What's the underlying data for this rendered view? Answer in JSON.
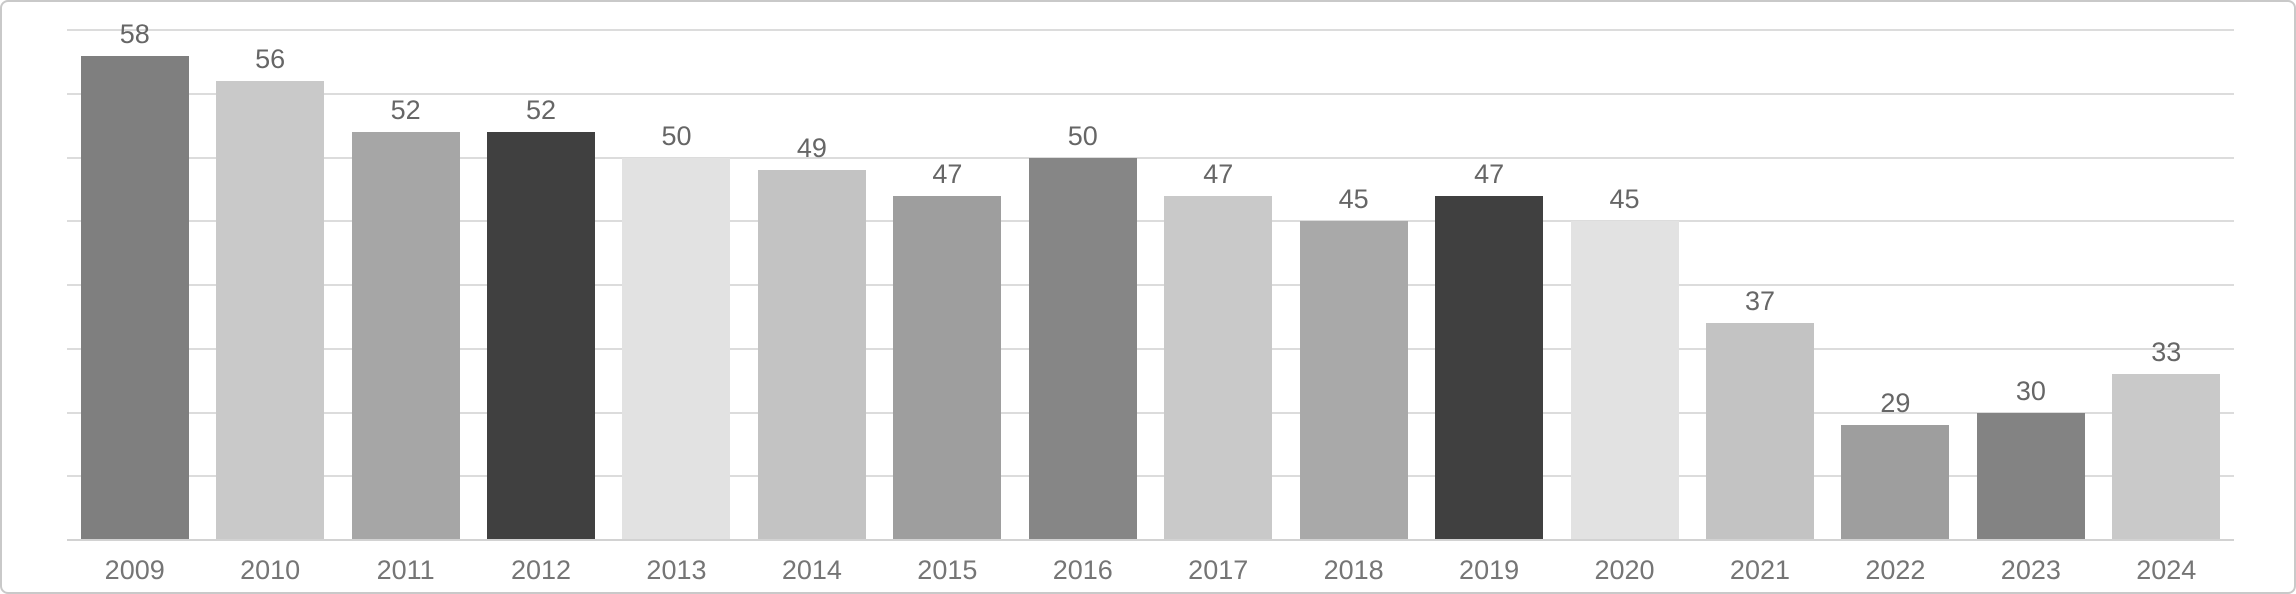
{
  "chart_data": {
    "type": "bar",
    "title": "",
    "xlabel": "",
    "ylabel": "",
    "categories": [
      "2009",
      "2010",
      "2011",
      "2012",
      "2013",
      "2014",
      "2015",
      "2016",
      "2017",
      "2018",
      "2019",
      "2020",
      "2021",
      "2022",
      "2023",
      "2024"
    ],
    "values": [
      58,
      56,
      52,
      52,
      50,
      49,
      47,
      50,
      47,
      45,
      47,
      45,
      37,
      29,
      30,
      33
    ],
    "bar_colors": [
      "#7f7f7f",
      "#c9c9c9",
      "#a6a6a6",
      "#404040",
      "#e2e2e2",
      "#c3c3c3",
      "#9e9e9e",
      "#868686",
      "#c9c9c9",
      "#a9a9a9",
      "#404040",
      "#e2e2e2",
      "#c3c3c3",
      "#9e9e9e",
      "#838383",
      "#c9c9c9"
    ],
    "ylim": [
      20,
      60
    ],
    "gridline_step": 5,
    "grid": "horizontal",
    "y_tick_labels_visible": false,
    "x_tick_labels_visible": true,
    "value_labels_position": "above-bars",
    "legend": "none"
  },
  "style": {
    "background_color": "#ffffff",
    "canvas_border_color": "#c9c9c9",
    "gridline_color": "#dcdcdc",
    "baseline_color": "#d2d2d2",
    "value_label_color": "#666666",
    "category_label_color": "#757575"
  }
}
